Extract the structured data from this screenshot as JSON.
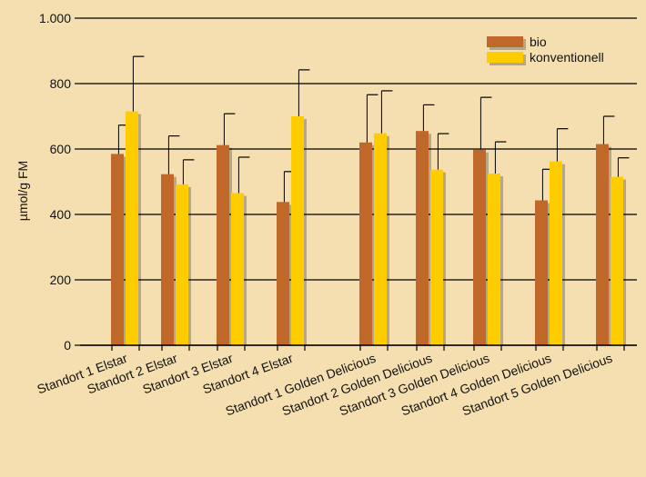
{
  "chart_data": {
    "type": "bar",
    "title": "",
    "xlabel": "",
    "ylabel": "µmol/g FM",
    "ylim": [
      0,
      1000
    ],
    "yticks": [
      0,
      200,
      400,
      600,
      800,
      1000
    ],
    "ytick_labels": [
      "0",
      "200",
      "400",
      "600",
      "800",
      "1.000"
    ],
    "grid": true,
    "legend_position": "top-right",
    "categories": [
      "Standort 1 Elstar",
      "Standort 2 Elstar",
      "Standort 3 Elstar",
      "Standort 4 Elstar",
      "Standort 1 Golden Delicious",
      "Standort 2 Golden Delicious",
      "Standort 3 Golden Delicious",
      "Standort 4 Golden Delicious",
      "Standort 5 Golden Delicious"
    ],
    "series": [
      {
        "name": "bio",
        "color": "#c0672a",
        "values": [
          585,
          523,
          612,
          438,
          620,
          655,
          598,
          443,
          615
        ],
        "errors": [
          88,
          117,
          96,
          93,
          146,
          80,
          160,
          95,
          85
        ]
      },
      {
        "name": "konventionell",
        "color": "#ffcc00",
        "values": [
          715,
          492,
          465,
          700,
          648,
          537,
          525,
          562,
          515
        ],
        "errors": [
          168,
          75,
          110,
          142,
          130,
          110,
          97,
          100,
          58
        ]
      }
    ]
  }
}
